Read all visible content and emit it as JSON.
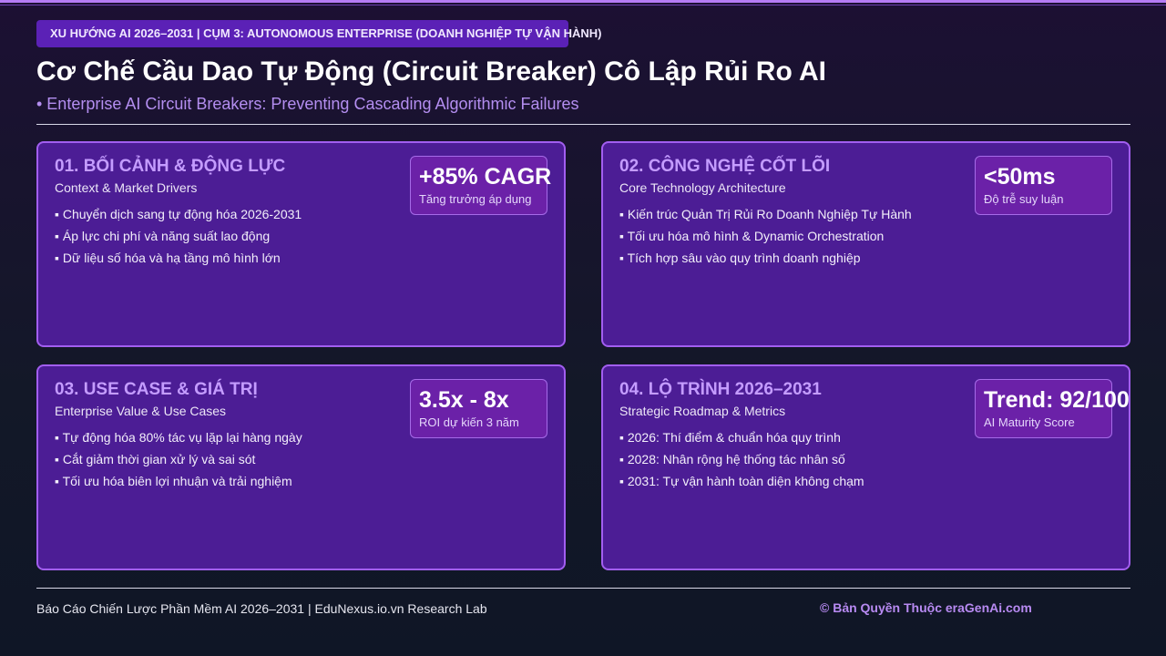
{
  "header": {
    "tag": "XU HƯỚNG AI 2026–2031 | CỤM 3: AUTONOMOUS ENTERPRISE (DOANH NGHIỆP TỰ VẬN HÀNH)",
    "title": "Cơ Chế Cầu Dao Tự Động (Circuit Breaker) Cô Lập Rủi Ro AI",
    "subtitle": "• Enterprise AI Circuit Breakers: Preventing Cascading Algorithmic Failures"
  },
  "cards": [
    {
      "heading": "01. BỐI CẢNH & ĐỘNG LỰC",
      "subheading": "Context & Market Drivers",
      "bullets": [
        "▪ Chuyển dịch sang tự động hóa 2026-2031",
        "▪ Áp lực chi phí và năng suất lao động",
        "▪ Dữ liệu số hóa và hạ tầng mô hình lớn"
      ],
      "metric": "+85% CAGR",
      "metric_label": "Tăng trưởng áp dụng"
    },
    {
      "heading": "02. CÔNG NGHỆ CỐT LÕI",
      "subheading": "Core Technology Architecture",
      "bullets": [
        "▪ Kiến trúc Quản Trị Rủi Ro Doanh Nghiệp Tự Hành",
        "▪ Tối ưu hóa mô hình & Dynamic Orchestration",
        "▪ Tích hợp sâu vào quy trình doanh nghiệp"
      ],
      "metric": "<50ms",
      "metric_label": "Độ trễ suy luận"
    },
    {
      "heading": "03. USE CASE & GIÁ TRỊ",
      "subheading": "Enterprise Value & Use Cases",
      "bullets": [
        "▪ Tự động hóa 80% tác vụ lặp lại hàng ngày",
        "▪ Cắt giảm thời gian xử lý và sai sót",
        "▪ Tối ưu hóa biên lợi nhuận và trải nghiệm"
      ],
      "metric": "3.5x - 8x",
      "metric_label": "ROI dự kiến 3 năm"
    },
    {
      "heading": "04. LỘ TRÌNH 2026–2031",
      "subheading": "Strategic Roadmap & Metrics",
      "bullets": [
        "▪ 2026: Thí điểm & chuẩn hóa quy trình",
        "▪ 2028: Nhân rộng hệ thống tác nhân số",
        "▪ 2031: Tự vận hành toàn diện không chạm"
      ],
      "metric": "Trend: 92/100",
      "metric_label": "AI Maturity Score"
    }
  ],
  "footer": {
    "left": "Báo Cáo Chiến Lược Phần Mềm AI 2026–2031 | EduNexus.io.vn Research Lab",
    "right": "© Bản Quyền Thuộc eraGenAi.com"
  }
}
